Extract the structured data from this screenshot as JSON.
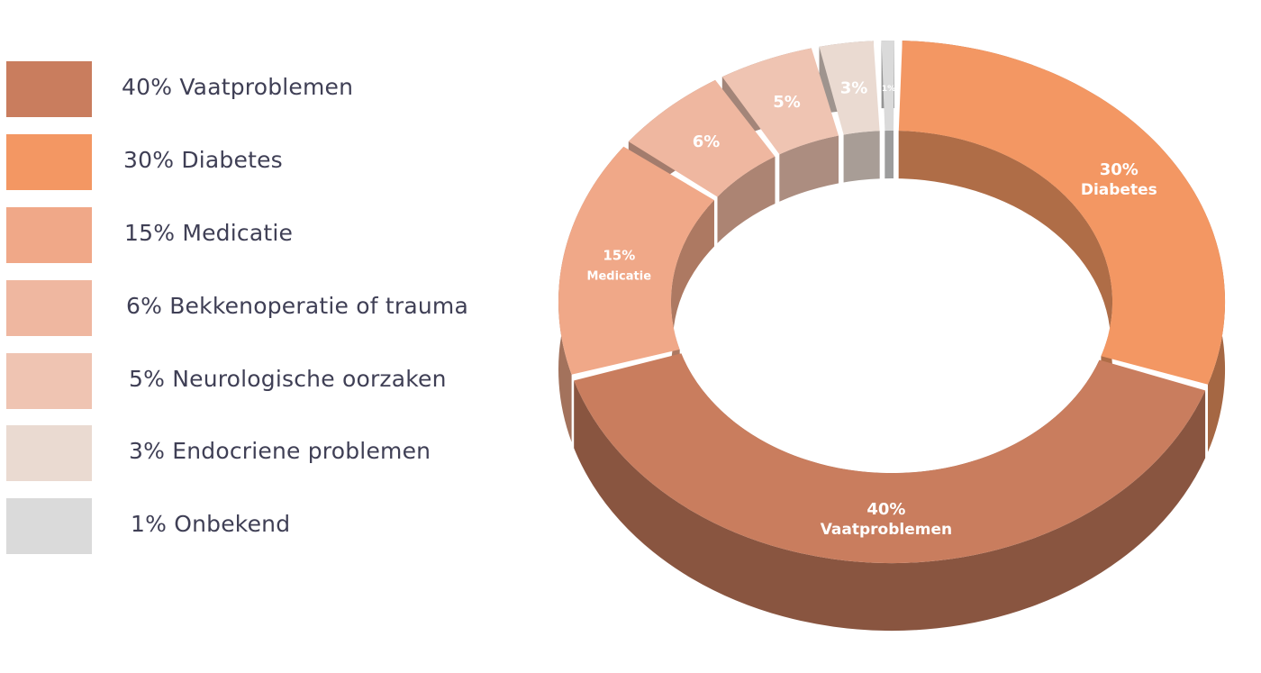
{
  "chart_data": {
    "type": "pie",
    "style": "3d-donut",
    "legend_position": "left",
    "series": [
      {
        "name": "",
        "values": [
          40,
          30,
          15,
          6,
          5,
          3,
          1
        ],
        "categories": [
          "Vaatproblemen",
          "Diabetes",
          "Medicatie",
          "Bekkenoperatie of trauma",
          "Neurologische oorzaken",
          "Endocriene problemen",
          "Onbekend"
        ]
      }
    ],
    "legend": [
      {
        "label": "40% Vaatproblemen",
        "color": "#c97d5e"
      },
      {
        "label": "30% Diabetes",
        "color": "#f39763"
      },
      {
        "label": "15% Medicatie",
        "color": "#f0a888"
      },
      {
        "label": "6% Bekkenoperatie of trauma",
        "color": "#efb7a0"
      },
      {
        "label": "5% Neurologische oorzaken",
        "color": "#efc4b2"
      },
      {
        "label": "3% Endocriene problemen",
        "color": "#eadad1"
      },
      {
        "label": "1% Onbekend",
        "color": "#dadada"
      }
    ],
    "slice_labels": [
      {
        "percent": "40%",
        "name": "Vaatproblemen"
      },
      {
        "percent": "30%",
        "name": "Diabetes"
      },
      {
        "percent": "15%",
        "name": "Medicatie"
      },
      {
        "percent": "6%",
        "name": ""
      },
      {
        "percent": "5%",
        "name": ""
      },
      {
        "percent": "3%",
        "name": ""
      },
      {
        "percent": "1%",
        "name": ""
      }
    ]
  }
}
